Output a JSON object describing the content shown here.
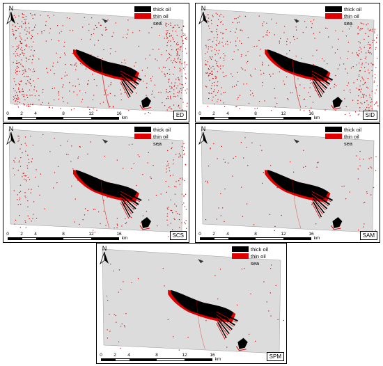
{
  "legend": {
    "items": [
      {
        "label": "thick oil",
        "color": "#000000"
      },
      {
        "label": "thin oil",
        "color": "#e00000"
      },
      {
        "label": "sea",
        "color": "#dcdcdc"
      }
    ]
  },
  "north_label": "N",
  "scale_bar": {
    "ticks": [
      "0",
      "2",
      "4",
      "8",
      "12",
      "16"
    ],
    "unit": "km"
  },
  "panels": [
    {
      "method": "ED"
    },
    {
      "method": "SID"
    },
    {
      "method": "SCS"
    },
    {
      "method": "SAM"
    },
    {
      "method": "SPM"
    }
  ]
}
